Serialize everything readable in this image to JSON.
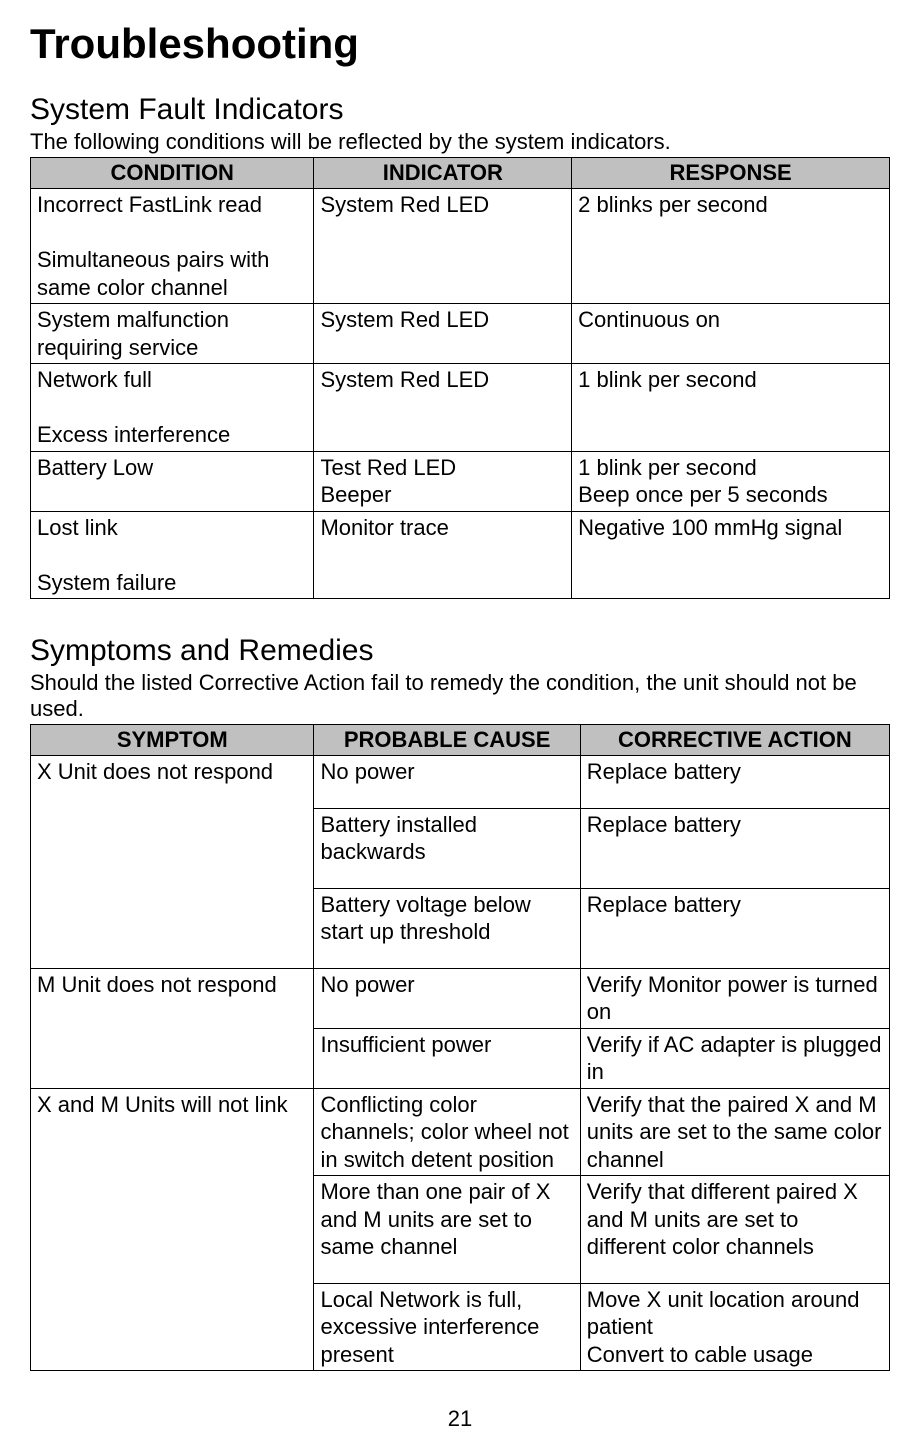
{
  "page": {
    "title": "Troubleshooting",
    "page_number": "21"
  },
  "section1": {
    "heading": "System Fault Indicators",
    "intro": "The following conditions will be reflected by the system indicators.",
    "headers": {
      "c1": "CONDITION",
      "c2": "INDICATOR",
      "c3": "RESPONSE"
    },
    "rows": [
      {
        "c1": "Incorrect FastLink read\n\nSimultaneous pairs with same color channel",
        "c2": "System Red LED",
        "c3": "2 blinks per second"
      },
      {
        "c1": "System malfunction requiring service",
        "c2": "System Red LED",
        "c3": "Continuous on"
      },
      {
        "c1": "Network full\n\nExcess interference",
        "c2": "System Red LED",
        "c3": "1 blink per second"
      },
      {
        "c1": "Battery Low",
        "c2": "Test Red LED\nBeeper",
        "c3": "1 blink per second\nBeep once per 5 seconds"
      },
      {
        "c1": "Lost link\n\nSystem failure",
        "c2": "Monitor trace",
        "c3": "Negative 100 mmHg signal"
      }
    ]
  },
  "section2": {
    "heading": "Symptoms and Remedies",
    "intro": "Should the listed Corrective Action fail to remedy the condition, the unit should not be used.",
    "headers": {
      "c1": "SYMPTOM",
      "c2": "PROBABLE CAUSE",
      "c3": "CORRECTIVE ACTION"
    },
    "groups": [
      {
        "symptom": "X Unit does not respond",
        "rows": [
          {
            "cause": "No power",
            "action": "Replace battery",
            "pad": true
          },
          {
            "cause": "Battery installed backwards",
            "action": "Replace battery",
            "pad": true
          },
          {
            "cause": "Battery voltage below start up threshold",
            "action": "Replace battery",
            "pad": true
          }
        ]
      },
      {
        "symptom": "M Unit does not respond",
        "rows": [
          {
            "cause": "No power",
            "action": "Verify Monitor power is turned on",
            "pad": true
          },
          {
            "cause": "Insufficient power",
            "action": "Verify if AC adapter is plugged in",
            "pad": false
          }
        ]
      },
      {
        "symptom": "X and M Units will not link",
        "rows": [
          {
            "cause": "Conflicting color channels; color wheel not in switch detent position",
            "action": "Verify that the paired X and M units are set to the same color channel",
            "pad": false
          },
          {
            "cause": "More than one pair of X and M units are set to same channel",
            "action": "Verify that different paired X and M units are set to different color channels",
            "pad": true
          },
          {
            "cause": "Local Network is full, excessive interference present",
            "action": "Move X unit location around patient\nConvert to cable usage",
            "pad": false
          }
        ]
      }
    ]
  }
}
